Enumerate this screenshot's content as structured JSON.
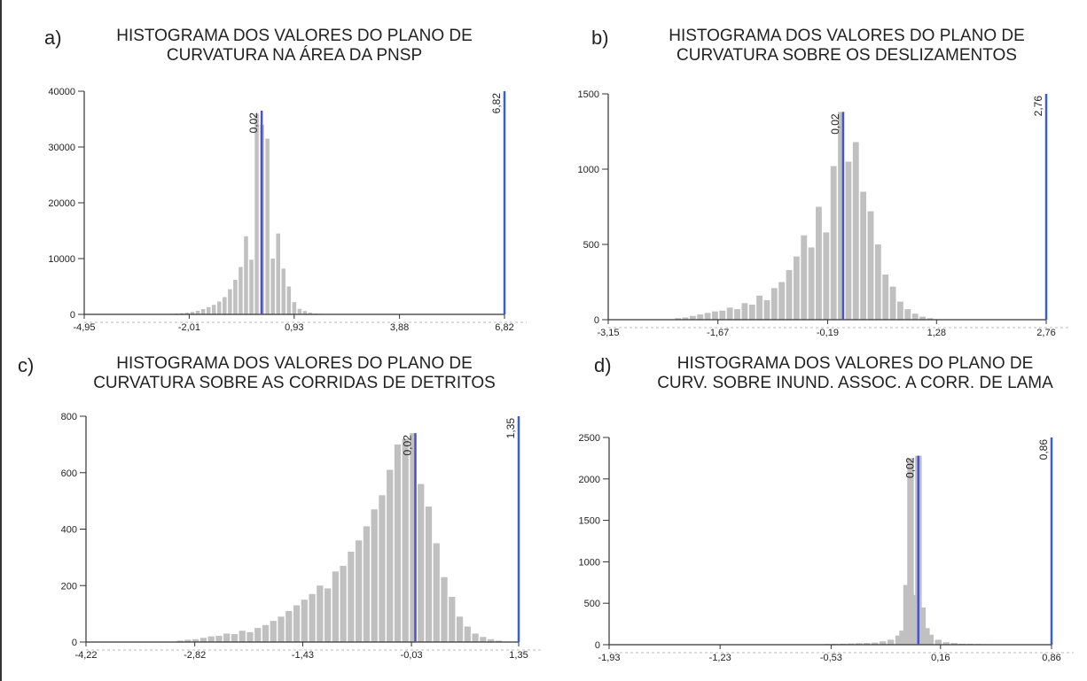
{
  "chart_data": [
    {
      "type": "bar",
      "panel": "a)",
      "title_lines": [
        "HISTOGRAMA DOS VALORES DO PLANO DE",
        "CURVATURA NA ÁREA DA PNSP"
      ],
      "xlim": [
        -4.95,
        6.82
      ],
      "ylim": [
        0,
        40000
      ],
      "x_ticks": [
        -4.95,
        -2.01,
        0.93,
        3.88,
        6.82
      ],
      "x_tick_labels": [
        "-4,95",
        "-2,01",
        "0,93",
        "3,88",
        "6,82"
      ],
      "y_ticks": [
        0,
        10000,
        20000,
        30000,
        40000
      ],
      "y_tick_labels": [
        "0",
        "10000",
        "20000",
        "30000",
        "40000"
      ],
      "bins": [
        {
          "x": -2.5,
          "count": 100
        },
        {
          "x": -2.35,
          "count": 150
        },
        {
          "x": -2.2,
          "count": 200
        },
        {
          "x": -2.05,
          "count": 300
        },
        {
          "x": -1.9,
          "count": 450
        },
        {
          "x": -1.75,
          "count": 650
        },
        {
          "x": -1.6,
          "count": 950
        },
        {
          "x": -1.45,
          "count": 1300
        },
        {
          "x": -1.3,
          "count": 1700
        },
        {
          "x": -1.15,
          "count": 2300
        },
        {
          "x": -1.0,
          "count": 3100
        },
        {
          "x": -0.85,
          "count": 4500
        },
        {
          "x": -0.7,
          "count": 6200
        },
        {
          "x": -0.55,
          "count": 8500
        },
        {
          "x": -0.4,
          "count": 14000
        },
        {
          "x": -0.25,
          "count": 9800
        },
        {
          "x": -0.1,
          "count": 36000
        },
        {
          "x": 0.05,
          "count": 34000
        },
        {
          "x": 0.2,
          "count": 31500
        },
        {
          "x": 0.35,
          "count": 10000
        },
        {
          "x": 0.5,
          "count": 14500
        },
        {
          "x": 0.65,
          "count": 8200
        },
        {
          "x": 0.8,
          "count": 5000
        },
        {
          "x": 0.95,
          "count": 2200
        },
        {
          "x": 1.1,
          "count": 1000
        },
        {
          "x": 1.25,
          "count": 600
        },
        {
          "x": 1.4,
          "count": 300
        },
        {
          "x": 1.55,
          "count": 150
        },
        {
          "x": 1.7,
          "count": 100
        }
      ],
      "markers": [
        {
          "x": 0.02,
          "label": "0,02",
          "y_top": 36500,
          "color": "#4a52c8"
        },
        {
          "x": 6.82,
          "label": "6,82",
          "y_top": 40000,
          "color": "#3a5fd0"
        }
      ]
    },
    {
      "type": "bar",
      "panel": "b)",
      "title_lines": [
        "HISTOGRAMA DOS VALORES DO PLANO DE",
        "CURVATURA SOBRE OS DESLIZAMENTOS"
      ],
      "xlim": [
        -3.15,
        2.76
      ],
      "ylim": [
        0,
        1500
      ],
      "x_ticks": [
        -3.15,
        -1.67,
        -0.19,
        1.28,
        2.76
      ],
      "x_tick_labels": [
        "-3,15",
        "-1,67",
        "-0,19",
        "1,28",
        "2,76"
      ],
      "y_ticks": [
        0,
        500,
        1000,
        1500
      ],
      "y_tick_labels": [
        "0",
        "500",
        "1000",
        "1500"
      ],
      "bins": [
        {
          "x": -2.2,
          "count": 10
        },
        {
          "x": -2.1,
          "count": 15
        },
        {
          "x": -2.0,
          "count": 25
        },
        {
          "x": -1.9,
          "count": 35
        },
        {
          "x": -1.8,
          "count": 45
        },
        {
          "x": -1.7,
          "count": 55
        },
        {
          "x": -1.6,
          "count": 60
        },
        {
          "x": -1.5,
          "count": 80
        },
        {
          "x": -1.4,
          "count": 70
        },
        {
          "x": -1.3,
          "count": 110
        },
        {
          "x": -1.2,
          "count": 100
        },
        {
          "x": -1.1,
          "count": 160
        },
        {
          "x": -1.0,
          "count": 130
        },
        {
          "x": -0.9,
          "count": 210
        },
        {
          "x": -0.8,
          "count": 250
        },
        {
          "x": -0.7,
          "count": 330
        },
        {
          "x": -0.6,
          "count": 420
        },
        {
          "x": -0.5,
          "count": 560
        },
        {
          "x": -0.4,
          "count": 480
        },
        {
          "x": -0.3,
          "count": 750
        },
        {
          "x": -0.2,
          "count": 580
        },
        {
          "x": -0.1,
          "count": 1020
        },
        {
          "x": 0.0,
          "count": 1380
        },
        {
          "x": 0.1,
          "count": 1050
        },
        {
          "x": 0.2,
          "count": 1180
        },
        {
          "x": 0.3,
          "count": 850
        },
        {
          "x": 0.4,
          "count": 720
        },
        {
          "x": 0.5,
          "count": 500
        },
        {
          "x": 0.6,
          "count": 300
        },
        {
          "x": 0.7,
          "count": 220
        },
        {
          "x": 0.8,
          "count": 120
        },
        {
          "x": 0.9,
          "count": 70
        },
        {
          "x": 1.0,
          "count": 40
        },
        {
          "x": 1.1,
          "count": 20
        },
        {
          "x": 1.2,
          "count": 10
        }
      ],
      "markers": [
        {
          "x": 0.02,
          "label": "0,02",
          "y_top": 1380,
          "color": "#4a52c8"
        },
        {
          "x": 2.76,
          "label": "2,76",
          "y_top": 1500,
          "color": "#3a5fd0"
        }
      ]
    },
    {
      "type": "bar",
      "panel": "c)",
      "title_lines": [
        "HISTOGRAMA DOS VALORES DO PLANO DE",
        "CURVATURA SOBRE AS CORRIDAS DE DETRITOS"
      ],
      "xlim": [
        -4.22,
        1.35
      ],
      "ylim": [
        0,
        800
      ],
      "x_ticks": [
        -4.22,
        -2.82,
        -1.43,
        -0.03,
        1.35
      ],
      "x_tick_labels": [
        "-4,22",
        "-2,82",
        "-1,43",
        "-0,03",
        "1,35"
      ],
      "y_ticks": [
        0,
        200,
        400,
        600,
        800
      ],
      "y_tick_labels": [
        "0",
        "200",
        "400",
        "600",
        "800"
      ],
      "bins": [
        {
          "x": -3.0,
          "count": 5
        },
        {
          "x": -2.9,
          "count": 8
        },
        {
          "x": -2.8,
          "count": 10
        },
        {
          "x": -2.7,
          "count": 15
        },
        {
          "x": -2.6,
          "count": 20
        },
        {
          "x": -2.5,
          "count": 22
        },
        {
          "x": -2.4,
          "count": 30
        },
        {
          "x": -2.3,
          "count": 28
        },
        {
          "x": -2.2,
          "count": 40
        },
        {
          "x": -2.1,
          "count": 35
        },
        {
          "x": -2.0,
          "count": 50
        },
        {
          "x": -1.9,
          "count": 60
        },
        {
          "x": -1.8,
          "count": 75
        },
        {
          "x": -1.7,
          "count": 90
        },
        {
          "x": -1.6,
          "count": 110
        },
        {
          "x": -1.5,
          "count": 130
        },
        {
          "x": -1.4,
          "count": 150
        },
        {
          "x": -1.3,
          "count": 170
        },
        {
          "x": -1.2,
          "count": 200
        },
        {
          "x": -1.1,
          "count": 190
        },
        {
          "x": -1.0,
          "count": 250
        },
        {
          "x": -0.9,
          "count": 270
        },
        {
          "x": -0.8,
          "count": 320
        },
        {
          "x": -0.7,
          "count": 360
        },
        {
          "x": -0.6,
          "count": 410
        },
        {
          "x": -0.5,
          "count": 470
        },
        {
          "x": -0.4,
          "count": 520
        },
        {
          "x": -0.3,
          "count": 610
        },
        {
          "x": -0.2,
          "count": 700
        },
        {
          "x": -0.1,
          "count": 720
        },
        {
          "x": 0.0,
          "count": 740
        },
        {
          "x": 0.1,
          "count": 560
        },
        {
          "x": 0.2,
          "count": 480
        },
        {
          "x": 0.3,
          "count": 350
        },
        {
          "x": 0.4,
          "count": 230
        },
        {
          "x": 0.5,
          "count": 160
        },
        {
          "x": 0.6,
          "count": 90
        },
        {
          "x": 0.7,
          "count": 55
        },
        {
          "x": 0.8,
          "count": 30
        },
        {
          "x": 0.9,
          "count": 18
        },
        {
          "x": 1.0,
          "count": 10
        },
        {
          "x": 1.1,
          "count": 5
        }
      ],
      "markers": [
        {
          "x": 0.02,
          "label": "0,02",
          "y_top": 740,
          "color": "#4a52c8"
        },
        {
          "x": 1.35,
          "label": "1,35",
          "y_top": 800,
          "color": "#3a5fd0"
        }
      ]
    },
    {
      "type": "bar",
      "panel": "d)",
      "title_lines": [
        "HISTOGRAMA DOS VALORES DO PLANO DE",
        "CURV. SOBRE INUND. ASSOC. A CORR. DE LAMA"
      ],
      "xlim": [
        -1.93,
        0.86
      ],
      "ylim": [
        0,
        2500
      ],
      "x_ticks": [
        -1.93,
        -1.23,
        -0.53,
        0.16,
        0.86
      ],
      "x_tick_labels": [
        "-1,93",
        "-1,23",
        "-0,53",
        "0,16",
        "0,86"
      ],
      "y_ticks": [
        0,
        500,
        1000,
        1500,
        2000,
        2500
      ],
      "y_tick_labels": [
        "0",
        "500",
        "1000",
        "1500",
        "2000",
        "2500"
      ],
      "bins": [
        {
          "x": -0.6,
          "count": 5
        },
        {
          "x": -0.55,
          "count": 8
        },
        {
          "x": -0.5,
          "count": 10
        },
        {
          "x": -0.45,
          "count": 12
        },
        {
          "x": -0.4,
          "count": 15
        },
        {
          "x": -0.35,
          "count": 18
        },
        {
          "x": -0.3,
          "count": 20
        },
        {
          "x": -0.25,
          "count": 25
        },
        {
          "x": -0.2,
          "count": 40
        },
        {
          "x": -0.15,
          "count": 60
        },
        {
          "x": -0.1,
          "count": 110
        },
        {
          "x": -0.075,
          "count": 170
        },
        {
          "x": -0.05,
          "count": 720
        },
        {
          "x": -0.025,
          "count": 2250
        },
        {
          "x": 0.0,
          "count": 600
        },
        {
          "x": 0.025,
          "count": 2280
        },
        {
          "x": 0.05,
          "count": 450
        },
        {
          "x": 0.075,
          "count": 200
        },
        {
          "x": 0.1,
          "count": 120
        },
        {
          "x": 0.15,
          "count": 60
        },
        {
          "x": 0.2,
          "count": 30
        },
        {
          "x": 0.25,
          "count": 20
        },
        {
          "x": 0.3,
          "count": 12
        },
        {
          "x": 0.35,
          "count": 10
        },
        {
          "x": 0.4,
          "count": 8
        },
        {
          "x": 0.45,
          "count": 6
        },
        {
          "x": 0.5,
          "count": 5
        }
      ],
      "markers": [
        {
          "x": 0.02,
          "label": "0,02",
          "y_top": 2280,
          "color": "#4a52c8"
        },
        {
          "x": 0.86,
          "label": "0,86",
          "y_top": 2500,
          "color": "#3a5fd0"
        }
      ]
    }
  ]
}
